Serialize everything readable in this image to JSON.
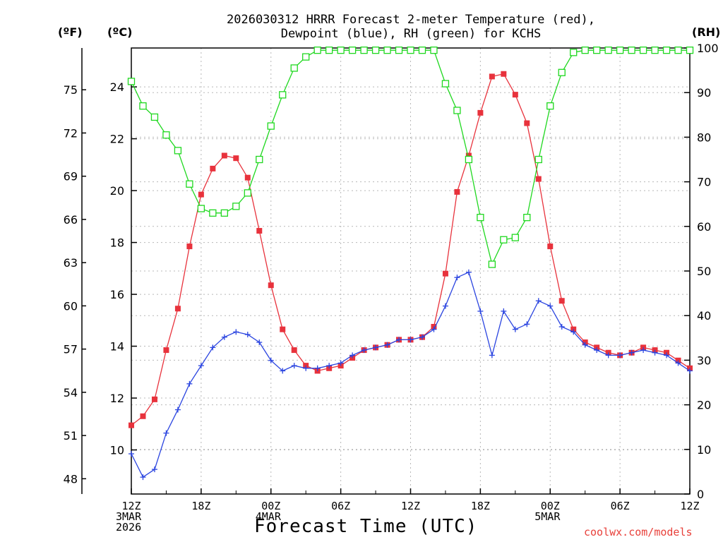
{
  "title_line1": "2026030312 HRRR Forecast 2-meter Temperature (red),",
  "title_line2": "Dewpoint (blue), RH (green) for KCHS",
  "units": {
    "fahrenheit": "(ºF)",
    "celsius": "(ºC)",
    "rh": "(RH)"
  },
  "x_axis_title": "Forecast Time (UTC)",
  "credit": "coolwx.com/models",
  "colors": {
    "temperature": "#e8323c",
    "dewpoint": "#2a44e0",
    "rh": "#1fd81f"
  },
  "chart_data": {
    "type": "line",
    "title": "2026030312 HRRR Forecast 2-meter Temperature (red), Dewpoint (blue), RH (green) for KCHS",
    "xlabel": "Forecast Time (UTC)",
    "ylabel_left_outer": "(ºF)",
    "ylabel_left_inner": "(ºC)",
    "ylabel_right": "(RH)",
    "x_unit": "forecast hour from 2026-03-03 12Z",
    "xlim": [
      0,
      48
    ],
    "ylim_c": [
      8.3,
      25.5
    ],
    "ylim_rh": [
      0,
      100
    ],
    "x_ticks": [
      {
        "x": 0,
        "label": "12Z"
      },
      {
        "x": 6,
        "label": "18Z"
      },
      {
        "x": 12,
        "label": "00Z"
      },
      {
        "x": 18,
        "label": "06Z"
      },
      {
        "x": 24,
        "label": "12Z"
      },
      {
        "x": 30,
        "label": "18Z"
      },
      {
        "x": 36,
        "label": "00Z"
      },
      {
        "x": 42,
        "label": "06Z"
      },
      {
        "x": 48,
        "label": "12Z"
      }
    ],
    "date_labels": [
      {
        "x": 0,
        "lines": [
          "3MAR",
          "2026"
        ]
      },
      {
        "x": 12,
        "lines": [
          "4MAR"
        ]
      },
      {
        "x": 36,
        "lines": [
          "5MAR"
        ]
      }
    ],
    "y_ticks_c": [
      10,
      12,
      14,
      16,
      18,
      20,
      22,
      24
    ],
    "y_ticks_f": [
      48,
      51,
      54,
      57,
      60,
      63,
      66,
      69,
      72,
      75
    ],
    "y_ticks_rh": [
      0,
      10,
      20,
      30,
      40,
      50,
      60,
      70,
      80,
      90,
      100
    ],
    "grid": true,
    "series": [
      {
        "name": "Temperature",
        "axis": "celsius",
        "marker": "filled-square",
        "x": [
          0,
          1,
          2,
          3,
          4,
          5,
          6,
          7,
          8,
          9,
          10,
          11,
          12,
          13,
          14,
          15,
          16,
          17,
          18,
          19,
          20,
          21,
          22,
          23,
          24,
          25,
          26,
          27,
          28,
          29,
          30,
          31,
          32,
          33,
          34,
          35,
          36,
          37,
          38,
          39,
          40,
          41,
          42,
          43,
          44,
          45,
          46,
          47,
          48
        ],
        "values": [
          10.95,
          11.3,
          11.95,
          13.85,
          15.45,
          17.85,
          19.85,
          20.85,
          21.35,
          21.25,
          20.5,
          18.45,
          16.35,
          14.65,
          13.85,
          13.25,
          13.05,
          13.15,
          13.25,
          13.55,
          13.85,
          13.95,
          14.05,
          14.25,
          14.25,
          14.35,
          14.75,
          16.8,
          19.95,
          21.35,
          23.0,
          24.4,
          24.5,
          23.7,
          22.6,
          20.45,
          17.85,
          15.75,
          14.65,
          14.15,
          13.95,
          13.75,
          13.65,
          13.75,
          13.95,
          13.85,
          13.75,
          13.45,
          13.15
        ]
      },
      {
        "name": "Dewpoint",
        "axis": "celsius",
        "marker": "plus",
        "x": [
          0,
          1,
          2,
          3,
          4,
          5,
          6,
          7,
          8,
          9,
          10,
          11,
          12,
          13,
          14,
          15,
          16,
          17,
          18,
          19,
          20,
          21,
          22,
          23,
          24,
          25,
          26,
          27,
          28,
          29,
          30,
          31,
          32,
          33,
          34,
          35,
          36,
          37,
          38,
          39,
          40,
          41,
          42,
          43,
          44,
          45,
          46,
          47,
          48
        ],
        "values": [
          9.85,
          8.95,
          9.25,
          10.65,
          11.55,
          12.55,
          13.25,
          13.95,
          14.35,
          14.55,
          14.45,
          14.15,
          13.45,
          13.05,
          13.25,
          13.15,
          13.15,
          13.25,
          13.35,
          13.65,
          13.85,
          13.95,
          14.05,
          14.25,
          14.25,
          14.35,
          14.65,
          15.55,
          16.65,
          16.85,
          15.35,
          13.65,
          15.35,
          14.65,
          14.85,
          15.75,
          15.55,
          14.75,
          14.55,
          14.05,
          13.85,
          13.65,
          13.65,
          13.75,
          13.85,
          13.75,
          13.65,
          13.35,
          13.05
        ]
      },
      {
        "name": "RH",
        "axis": "rh",
        "marker": "open-square",
        "x": [
          0,
          1,
          2,
          3,
          4,
          5,
          6,
          7,
          8,
          9,
          10,
          11,
          12,
          13,
          14,
          15,
          16,
          17,
          18,
          19,
          20,
          21,
          22,
          23,
          24,
          25,
          26,
          27,
          28,
          29,
          30,
          31,
          32,
          33,
          34,
          35,
          36,
          37,
          38,
          39,
          40,
          41,
          42,
          43,
          44,
          45,
          46,
          47,
          48
        ],
        "values": [
          92.5,
          87,
          84.5,
          80.5,
          77,
          69.5,
          64,
          63,
          63,
          64.5,
          67.5,
          75,
          82.5,
          89.5,
          95.5,
          98,
          99.5,
          99.5,
          99.5,
          99.5,
          99.5,
          99.5,
          99.5,
          99.5,
          99.5,
          99.5,
          99.5,
          92,
          86,
          75,
          62,
          51.5,
          57,
          57.5,
          62,
          75,
          87,
          94.5,
          99,
          99.5,
          99.5,
          99.5,
          99.5,
          99.5,
          99.5,
          99.5,
          99.5,
          99.5,
          99.5
        ]
      }
    ]
  }
}
